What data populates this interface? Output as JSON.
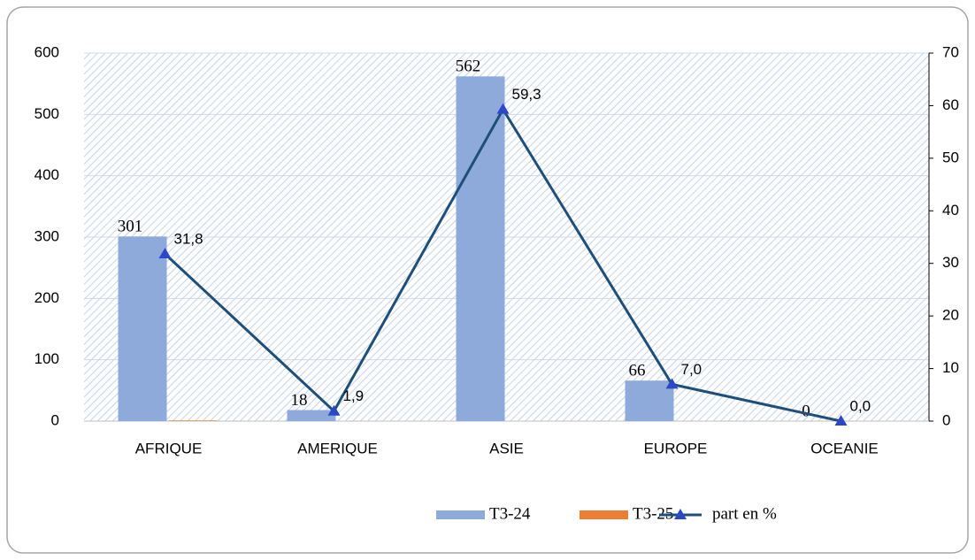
{
  "chart_data": {
    "type": "bar",
    "categories": [
      "AFRIQUE",
      "AMERIQUE",
      "ASIE",
      "EUROPE",
      "OCEANIE"
    ],
    "series": [
      {
        "name": "T3-24",
        "color": "#8eaadb",
        "values": [
          301,
          18,
          562,
          66,
          0
        ]
      },
      {
        "name": "T3-25",
        "color": "#ed7d31",
        "values": [
          1,
          0,
          0,
          0,
          0
        ]
      },
      {
        "name": "part en %",
        "type": "line",
        "axis": "y2",
        "color": "#1f4e79",
        "marker_color": "#2e47c8",
        "label_color": "#2323c8",
        "values": [
          31.8,
          1.9,
          59.3,
          7.0,
          0.0
        ],
        "value_labels": [
          "31,8",
          "1,9",
          "59,3",
          "7,0",
          "0,0"
        ]
      }
    ],
    "ylim": [
      0,
      600
    ],
    "yticks": [
      0,
      100,
      200,
      300,
      400,
      500,
      600
    ],
    "y2lim": [
      0,
      70
    ],
    "y2ticks": [
      0,
      10,
      20,
      30,
      40,
      50,
      60,
      70
    ],
    "grid": true,
    "legend": "bottom"
  }
}
